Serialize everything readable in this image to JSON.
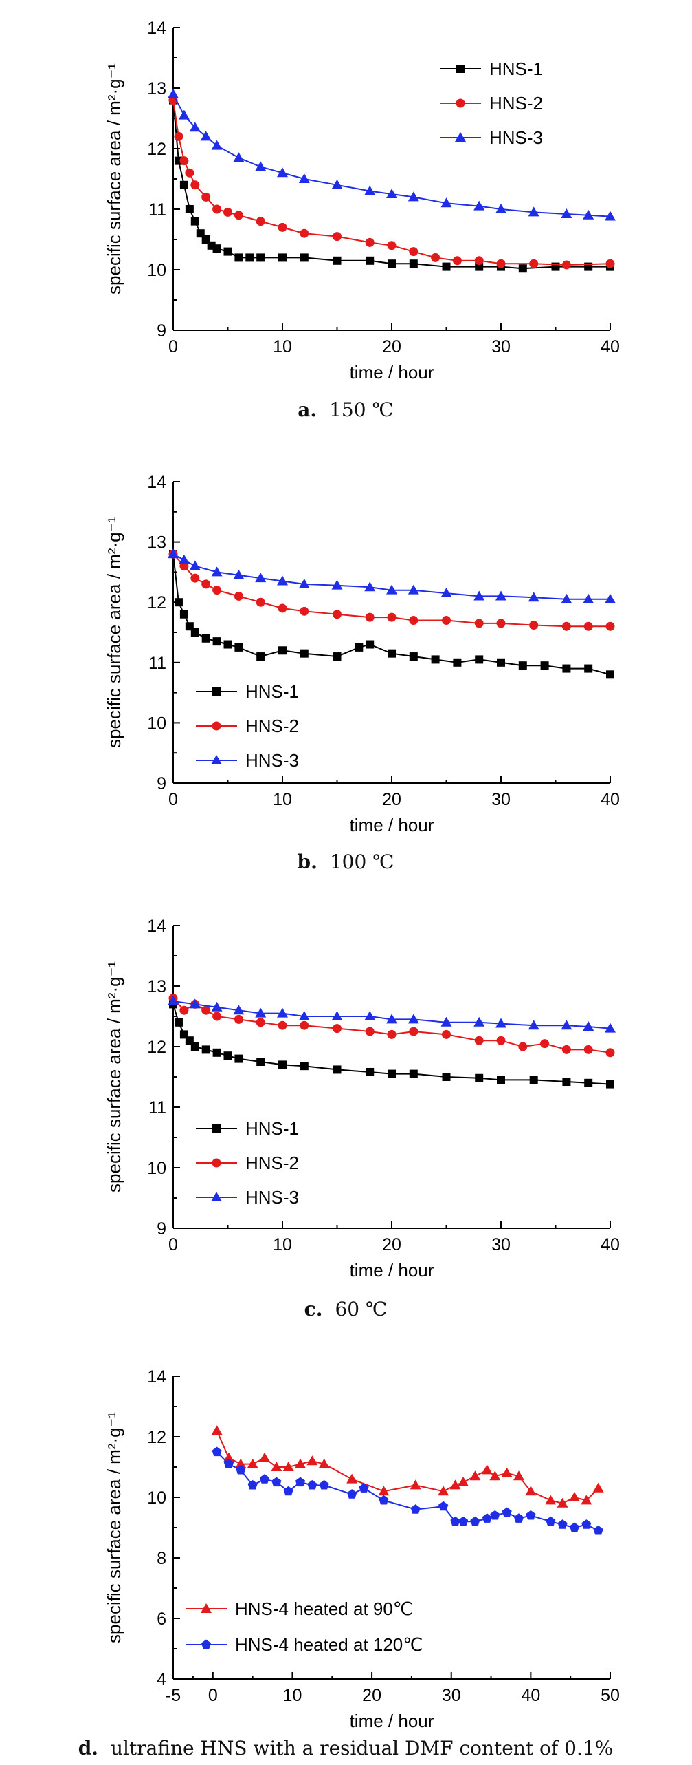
{
  "chart_data": [
    {
      "type": "scatter",
      "panel": "a",
      "caption_letter": "a.",
      "caption_text": "150 ℃",
      "xlabel": "time / hour",
      "ylabel": "specific surface area / m²·g⁻¹",
      "xlim": [
        0,
        40
      ],
      "ylim": [
        9,
        14
      ],
      "xticks": [
        "0",
        "10",
        "20",
        "30",
        "40"
      ],
      "yticks": [
        "9",
        "10",
        "11",
        "12",
        "13",
        "14"
      ],
      "legend_position": "top-right",
      "series": [
        {
          "name": "HNS-1",
          "color": "#000000",
          "marker": "square",
          "x": [
            0,
            0.5,
            1,
            1.5,
            2,
            2.5,
            3,
            3.5,
            4,
            5,
            6,
            7,
            8,
            10,
            12,
            15,
            18,
            20,
            22,
            25,
            28,
            30,
            32,
            35,
            38,
            40
          ],
          "y": [
            12.8,
            11.8,
            11.4,
            11.0,
            10.8,
            10.6,
            10.5,
            10.4,
            10.35,
            10.3,
            10.2,
            10.2,
            10.2,
            10.2,
            10.2,
            10.15,
            10.15,
            10.1,
            10.1,
            10.05,
            10.05,
            10.05,
            10.02,
            10.05,
            10.05,
            10.05
          ]
        },
        {
          "name": "HNS-2",
          "color": "#e31a1c",
          "marker": "circle",
          "x": [
            0,
            0.5,
            1,
            1.5,
            2,
            3,
            4,
            5,
            6,
            8,
            10,
            12,
            15,
            18,
            20,
            22,
            24,
            26,
            28,
            30,
            33,
            36,
            40
          ],
          "y": [
            12.8,
            12.2,
            11.8,
            11.6,
            11.4,
            11.2,
            11.0,
            10.95,
            10.9,
            10.8,
            10.7,
            10.6,
            10.55,
            10.45,
            10.4,
            10.3,
            10.2,
            10.15,
            10.15,
            10.1,
            10.1,
            10.08,
            10.1
          ]
        },
        {
          "name": "HNS-3",
          "color": "#1f2ee6",
          "marker": "triangle",
          "x": [
            0,
            1,
            2,
            3,
            4,
            6,
            8,
            10,
            12,
            15,
            18,
            20,
            22,
            25,
            28,
            30,
            33,
            36,
            38,
            40
          ],
          "y": [
            12.9,
            12.55,
            12.35,
            12.2,
            12.05,
            11.85,
            11.7,
            11.6,
            11.5,
            11.4,
            11.3,
            11.25,
            11.2,
            11.1,
            11.05,
            11.0,
            10.95,
            10.92,
            10.9,
            10.88
          ]
        }
      ]
    },
    {
      "type": "scatter",
      "panel": "b",
      "caption_letter": "b.",
      "caption_text": "100 ℃",
      "xlabel": "time / hour",
      "ylabel": "specific surface area / m²·g⁻¹",
      "xlim": [
        0,
        40
      ],
      "ylim": [
        9,
        14
      ],
      "xticks": [
        "0",
        "10",
        "20",
        "30",
        "40"
      ],
      "yticks": [
        "9",
        "10",
        "11",
        "12",
        "13",
        "14"
      ],
      "legend_position": "bottom-left",
      "series": [
        {
          "name": "HNS-1",
          "color": "#000000",
          "marker": "square",
          "x": [
            0,
            0.5,
            1,
            1.5,
            2,
            3,
            4,
            5,
            6,
            8,
            10,
            12,
            15,
            17,
            18,
            20,
            22,
            24,
            26,
            28,
            30,
            32,
            34,
            36,
            38,
            40
          ],
          "y": [
            12.8,
            12.0,
            11.8,
            11.6,
            11.5,
            11.4,
            11.35,
            11.3,
            11.25,
            11.1,
            11.2,
            11.15,
            11.1,
            11.25,
            11.3,
            11.15,
            11.1,
            11.05,
            11.0,
            11.05,
            11.0,
            10.95,
            10.95,
            10.9,
            10.9,
            10.8
          ]
        },
        {
          "name": "HNS-2",
          "color": "#e31a1c",
          "marker": "circle",
          "x": [
            0,
            1,
            2,
            3,
            4,
            6,
            8,
            10,
            12,
            15,
            18,
            20,
            22,
            25,
            28,
            30,
            33,
            36,
            38,
            40
          ],
          "y": [
            12.8,
            12.6,
            12.4,
            12.3,
            12.2,
            12.1,
            12.0,
            11.9,
            11.85,
            11.8,
            11.75,
            11.75,
            11.7,
            11.7,
            11.65,
            11.65,
            11.62,
            11.6,
            11.6,
            11.6
          ]
        },
        {
          "name": "HNS-3",
          "color": "#1f2ee6",
          "marker": "triangle",
          "x": [
            0,
            1,
            2,
            4,
            6,
            8,
            10,
            12,
            15,
            18,
            20,
            22,
            25,
            28,
            30,
            33,
            36,
            38,
            40
          ],
          "y": [
            12.8,
            12.7,
            12.6,
            12.5,
            12.45,
            12.4,
            12.35,
            12.3,
            12.28,
            12.25,
            12.2,
            12.2,
            12.15,
            12.1,
            12.1,
            12.08,
            12.05,
            12.05,
            12.05
          ]
        }
      ]
    },
    {
      "type": "scatter",
      "panel": "c",
      "caption_letter": "c.",
      "caption_text": "60 ℃",
      "xlabel": "time / hour",
      "ylabel": "specific surface area / m²·g⁻¹",
      "xlim": [
        0,
        40
      ],
      "ylim": [
        9,
        14
      ],
      "xticks": [
        "0",
        "10",
        "20",
        "30",
        "40"
      ],
      "yticks": [
        "9",
        "10",
        "11",
        "12",
        "13",
        "14"
      ],
      "legend_position": "bottom-left",
      "series": [
        {
          "name": "HNS-1",
          "color": "#000000",
          "marker": "square",
          "x": [
            0,
            0.5,
            1,
            1.5,
            2,
            3,
            4,
            5,
            6,
            8,
            10,
            12,
            15,
            18,
            20,
            22,
            25,
            28,
            30,
            33,
            36,
            38,
            40
          ],
          "y": [
            12.7,
            12.4,
            12.2,
            12.1,
            12.0,
            11.95,
            11.9,
            11.85,
            11.8,
            11.75,
            11.7,
            11.68,
            11.62,
            11.58,
            11.55,
            11.55,
            11.5,
            11.48,
            11.45,
            11.45,
            11.42,
            11.4,
            11.38
          ]
        },
        {
          "name": "HNS-2",
          "color": "#e31a1c",
          "marker": "circle",
          "x": [
            0,
            1,
            2,
            3,
            4,
            6,
            8,
            10,
            12,
            15,
            18,
            20,
            22,
            25,
            28,
            30,
            32,
            34,
            36,
            38,
            40
          ],
          "y": [
            12.8,
            12.6,
            12.7,
            12.6,
            12.5,
            12.45,
            12.4,
            12.35,
            12.35,
            12.3,
            12.25,
            12.2,
            12.25,
            12.2,
            12.1,
            12.1,
            12.0,
            12.05,
            11.95,
            11.95,
            11.9
          ]
        },
        {
          "name": "HNS-3",
          "color": "#1f2ee6",
          "marker": "triangle",
          "x": [
            0,
            2,
            4,
            6,
            8,
            10,
            12,
            15,
            18,
            20,
            22,
            25,
            28,
            30,
            33,
            36,
            38,
            40
          ],
          "y": [
            12.75,
            12.7,
            12.65,
            12.6,
            12.55,
            12.55,
            12.5,
            12.5,
            12.5,
            12.45,
            12.45,
            12.4,
            12.4,
            12.38,
            12.35,
            12.35,
            12.33,
            12.3
          ]
        }
      ]
    },
    {
      "type": "line",
      "panel": "d",
      "caption_letter": "d.",
      "caption_text": "ultrafine HNS with a residual DMF content of 0.1%",
      "xlabel": "time / hour",
      "ylabel": "specific surface area / m²·g⁻¹",
      "xlim": [
        -5,
        50
      ],
      "ylim": [
        4,
        14
      ],
      "xticks": [
        "-5",
        "0",
        "10",
        "20",
        "30",
        "40",
        "50"
      ],
      "yticks": [
        "4",
        "6",
        "8",
        "10",
        "12",
        "14"
      ],
      "legend_position": "bottom-left",
      "series": [
        {
          "name": "HNS-4 heated at 90℃",
          "color": "#e31a1c",
          "marker": "triangle",
          "x": [
            0.5,
            2,
            3.5,
            5,
            6.5,
            8,
            9.5,
            11,
            12.5,
            14,
            17.5,
            21.5,
            25.5,
            29,
            30.5,
            31.5,
            33,
            34.5,
            35.5,
            37,
            38.5,
            40,
            42.5,
            44,
            45.5,
            47,
            48.5
          ],
          "y": [
            12.2,
            11.3,
            11.1,
            11.1,
            11.3,
            11.0,
            11.0,
            11.1,
            11.2,
            11.1,
            10.6,
            10.2,
            10.4,
            10.2,
            10.4,
            10.5,
            10.7,
            10.9,
            10.7,
            10.8,
            10.7,
            10.2,
            9.9,
            9.8,
            10.0,
            9.9,
            10.3
          ]
        },
        {
          "name": "HNS-4 heated at 120℃",
          "color": "#1f2ee6",
          "marker": "pentagon",
          "x": [
            0.5,
            2,
            3.5,
            5,
            6.5,
            8,
            9.5,
            11,
            12.5,
            14,
            17.5,
            19,
            21.5,
            25.5,
            29,
            30.5,
            31.5,
            33,
            34.5,
            35.5,
            37,
            38.5,
            40,
            42.5,
            44,
            45.5,
            47,
            48.5
          ],
          "y": [
            11.5,
            11.1,
            10.9,
            10.4,
            10.6,
            10.5,
            10.2,
            10.5,
            10.4,
            10.4,
            10.1,
            10.3,
            9.9,
            9.6,
            9.7,
            9.2,
            9.2,
            9.2,
            9.3,
            9.4,
            9.5,
            9.3,
            9.4,
            9.2,
            9.1,
            9.0,
            9.1,
            8.9
          ]
        }
      ]
    }
  ]
}
